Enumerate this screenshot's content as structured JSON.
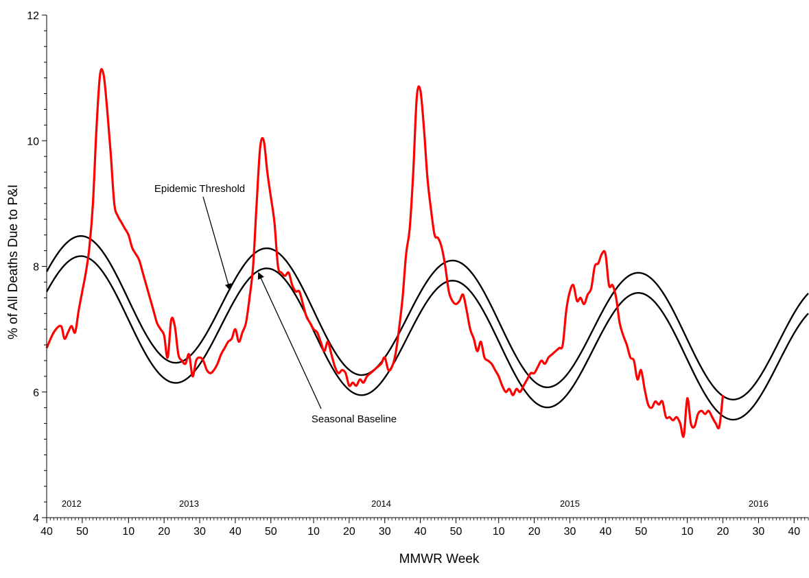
{
  "chart_data": {
    "type": "line",
    "title": "",
    "xlabel": "MMWR Week",
    "ylabel": "% of All Deaths Due to P&I",
    "ylim": [
      4,
      12
    ],
    "y_ticks": [
      "4",
      "6",
      "8",
      "10",
      "12"
    ],
    "x_range_weeks": [
      0,
      214
    ],
    "x_ticks": [
      "40",
      "50",
      "10",
      "20",
      "30",
      "40",
      "50",
      "10",
      "20",
      "30",
      "40",
      "50",
      "10",
      "20",
      "30",
      "40",
      "50",
      "10",
      "20",
      "30",
      "40"
    ],
    "x_tick_week_index": [
      0,
      10,
      23,
      33,
      43,
      53,
      63,
      75,
      85,
      95,
      105,
      115,
      127,
      137,
      147,
      157,
      167,
      180,
      190,
      200,
      210
    ],
    "year_labels": [
      {
        "label": "2012",
        "week_index": 7
      },
      {
        "label": "2013",
        "week_index": 40
      },
      {
        "label": "2014",
        "week_index": 94
      },
      {
        "label": "2015",
        "week_index": 147
      },
      {
        "label": "2016",
        "week_index": 200
      }
    ],
    "grid": false,
    "legend": "none",
    "series": [
      {
        "color": "#ff0000",
        "points": [
          [
            0,
            6.7
          ],
          [
            2,
            6.95
          ],
          [
            4,
            7.05
          ],
          [
            5,
            6.85
          ],
          [
            6,
            6.95
          ],
          [
            7,
            7.05
          ],
          [
            8,
            6.95
          ],
          [
            9,
            7.3
          ],
          [
            10,
            7.6
          ],
          [
            11,
            7.9
          ],
          [
            12,
            8.3
          ],
          [
            13,
            9.0
          ],
          [
            14,
            10.2
          ],
          [
            15,
            11.05
          ],
          [
            16,
            11.05
          ],
          [
            17,
            10.5
          ],
          [
            18,
            9.8
          ],
          [
            19,
            9.0
          ],
          [
            20,
            8.8
          ],
          [
            21,
            8.7
          ],
          [
            22,
            8.6
          ],
          [
            23,
            8.5
          ],
          [
            24,
            8.3
          ],
          [
            25,
            8.2
          ],
          [
            26,
            8.1
          ],
          [
            27,
            7.9
          ],
          [
            28,
            7.7
          ],
          [
            29,
            7.5
          ],
          [
            30,
            7.3
          ],
          [
            31,
            7.1
          ],
          [
            32,
            7.0
          ],
          [
            33,
            6.9
          ],
          [
            34,
            6.55
          ],
          [
            35,
            7.15
          ],
          [
            36,
            7.05
          ],
          [
            37,
            6.6
          ],
          [
            38,
            6.5
          ],
          [
            39,
            6.45
          ],
          [
            40,
            6.6
          ],
          [
            41,
            6.25
          ],
          [
            42,
            6.5
          ],
          [
            43,
            6.55
          ],
          [
            44,
            6.5
          ],
          [
            45,
            6.35
          ],
          [
            46,
            6.3
          ],
          [
            47,
            6.35
          ],
          [
            48,
            6.45
          ],
          [
            49,
            6.6
          ],
          [
            50,
            6.7
          ],
          [
            51,
            6.8
          ],
          [
            52,
            6.85
          ],
          [
            53,
            7.0
          ],
          [
            54,
            6.8
          ],
          [
            55,
            6.95
          ],
          [
            56,
            7.1
          ],
          [
            57,
            7.5
          ],
          [
            58,
            8.0
          ],
          [
            59,
            9.0
          ],
          [
            60,
            9.9
          ],
          [
            61,
            10.0
          ],
          [
            62,
            9.5
          ],
          [
            63,
            9.1
          ],
          [
            64,
            8.7
          ],
          [
            65,
            8.0
          ],
          [
            66,
            7.9
          ],
          [
            67,
            7.85
          ],
          [
            68,
            7.9
          ],
          [
            69,
            7.7
          ],
          [
            70,
            7.6
          ],
          [
            71,
            7.6
          ],
          [
            72,
            7.4
          ],
          [
            73,
            7.2
          ],
          [
            74,
            7.1
          ],
          [
            75,
            7.0
          ],
          [
            76,
            6.95
          ],
          [
            77,
            6.8
          ],
          [
            78,
            6.65
          ],
          [
            79,
            6.8
          ],
          [
            80,
            6.6
          ],
          [
            81,
            6.4
          ],
          [
            82,
            6.3
          ],
          [
            83,
            6.35
          ],
          [
            84,
            6.3
          ],
          [
            85,
            6.1
          ],
          [
            86,
            6.15
          ],
          [
            87,
            6.1
          ],
          [
            88,
            6.2
          ],
          [
            89,
            6.15
          ],
          [
            90,
            6.25
          ],
          [
            91,
            6.3
          ],
          [
            92,
            6.35
          ],
          [
            93,
            6.4
          ],
          [
            94,
            6.45
          ],
          [
            95,
            6.55
          ],
          [
            96,
            6.35
          ],
          [
            97,
            6.4
          ],
          [
            98,
            6.6
          ],
          [
            99,
            7.0
          ],
          [
            100,
            7.5
          ],
          [
            101,
            8.2
          ],
          [
            102,
            8.6
          ],
          [
            103,
            9.5
          ],
          [
            104,
            10.7
          ],
          [
            105,
            10.8
          ],
          [
            106,
            10.2
          ],
          [
            107,
            9.4
          ],
          [
            108,
            8.9
          ],
          [
            109,
            8.5
          ],
          [
            110,
            8.45
          ],
          [
            111,
            8.3
          ],
          [
            112,
            8.0
          ],
          [
            113,
            7.6
          ],
          [
            114,
            7.45
          ],
          [
            115,
            7.4
          ],
          [
            116,
            7.45
          ],
          [
            117,
            7.55
          ],
          [
            118,
            7.3
          ],
          [
            119,
            7.0
          ],
          [
            120,
            6.85
          ],
          [
            121,
            6.65
          ],
          [
            122,
            6.8
          ],
          [
            123,
            6.55
          ],
          [
            124,
            6.5
          ],
          [
            125,
            6.45
          ],
          [
            126,
            6.35
          ],
          [
            127,
            6.25
          ],
          [
            128,
            6.1
          ],
          [
            129,
            6.0
          ],
          [
            130,
            6.05
          ],
          [
            131,
            5.95
          ],
          [
            132,
            6.05
          ],
          [
            133,
            6.0
          ],
          [
            134,
            6.1
          ],
          [
            135,
            6.2
          ],
          [
            136,
            6.3
          ],
          [
            137,
            6.3
          ],
          [
            138,
            6.4
          ],
          [
            139,
            6.5
          ],
          [
            140,
            6.45
          ],
          [
            141,
            6.55
          ],
          [
            142,
            6.6
          ],
          [
            143,
            6.65
          ],
          [
            144,
            6.7
          ],
          [
            145,
            6.75
          ],
          [
            146,
            7.3
          ],
          [
            147,
            7.6
          ],
          [
            148,
            7.7
          ],
          [
            149,
            7.45
          ],
          [
            150,
            7.5
          ],
          [
            151,
            7.4
          ],
          [
            152,
            7.55
          ],
          [
            153,
            7.65
          ],
          [
            154,
            8.0
          ],
          [
            155,
            8.05
          ],
          [
            156,
            8.2
          ],
          [
            157,
            8.2
          ],
          [
            158,
            7.7
          ],
          [
            159,
            7.7
          ],
          [
            160,
            7.5
          ],
          [
            161,
            7.1
          ],
          [
            162,
            6.9
          ],
          [
            163,
            6.75
          ],
          [
            164,
            6.55
          ],
          [
            165,
            6.5
          ],
          [
            166,
            6.2
          ],
          [
            167,
            6.35
          ],
          [
            168,
            6.05
          ],
          [
            169,
            5.8
          ],
          [
            170,
            5.75
          ],
          [
            171,
            5.85
          ],
          [
            172,
            5.8
          ],
          [
            173,
            5.85
          ],
          [
            174,
            5.6
          ],
          [
            175,
            5.6
          ],
          [
            176,
            5.55
          ],
          [
            177,
            5.6
          ],
          [
            178,
            5.5
          ],
          [
            179,
            5.3
          ],
          [
            180,
            5.9
          ],
          [
            181,
            5.5
          ],
          [
            182,
            5.45
          ],
          [
            183,
            5.65
          ],
          [
            184,
            5.7
          ],
          [
            185,
            5.65
          ],
          [
            186,
            5.7
          ],
          [
            187,
            5.6
          ],
          [
            188,
            5.5
          ],
          [
            189,
            5.45
          ],
          [
            190,
            5.95
          ]
        ]
      },
      {
        "color": "#000000",
        "amplitude": 0.96,
        "trend": [
          [
            0,
            7.56
          ],
          [
            214,
            6.76
          ]
        ],
        "trough_week_index": 36,
        "period_weeks": 52.2
      },
      {
        "color": "#000000",
        "amplitude": 0.96,
        "trend": [
          [
            0,
            7.24
          ],
          [
            214,
            6.44
          ]
        ],
        "trough_week_index": 36,
        "period_weeks": 52.2
      }
    ],
    "annotations": [
      {
        "label": "Epidemic Threshold",
        "arrow_to_week": 51.5
      },
      {
        "label": "Seasonal Baseline",
        "arrow_to_week": 59.5
      }
    ]
  }
}
